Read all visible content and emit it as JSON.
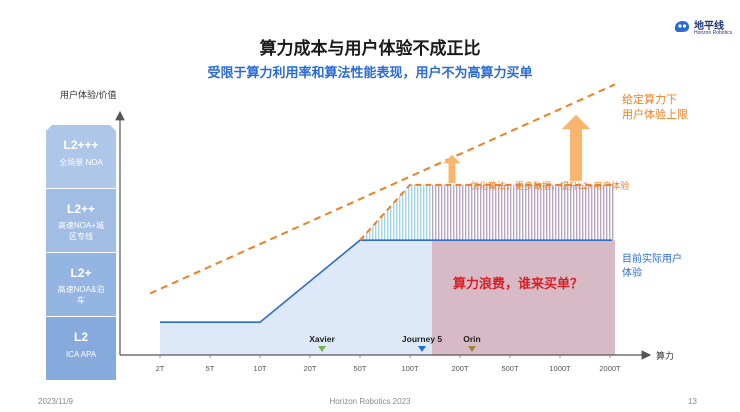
{
  "title": "算力成本与用户体验不成正比",
  "subtitle": "受限于算力利用率和算法性能表现，用户不为高算力买单",
  "logo": {
    "name_cn": "地平线",
    "name_en": "Horizon Robotics",
    "icon": "horizon-logo-icon",
    "color": "#233a7a"
  },
  "footer": {
    "date": "2023/11/9",
    "company": "Horizon Robotics 2023",
    "page": "13"
  },
  "chart_data": {
    "type": "line",
    "ylabel": "用户体验/价值",
    "xlabel": "算力",
    "categories": [
      "2T",
      "5T",
      "10T",
      "20T",
      "50T",
      "100T",
      "200T",
      "500T",
      "1000T",
      "2000T"
    ],
    "levels": [
      {
        "name": "L2+++",
        "desc": "全场景 NOA"
      },
      {
        "name": "L2++",
        "desc": "高速NOA+城区专线"
      },
      {
        "name": "L2+",
        "desc": "高速NOA&泊车"
      },
      {
        "name": "L2",
        "desc": "ICA APA"
      }
    ],
    "series": [
      {
        "name": "目前实际用户体验",
        "color": "#2b6bd6",
        "points": [
          [
            "2T",
            0.16
          ],
          [
            "10T",
            0.16
          ],
          [
            "50T",
            0.56
          ],
          [
            "2000T",
            0.56
          ]
        ]
      },
      {
        "name": "给定算力下用户体验上限",
        "color": "#f07f23",
        "points": [
          [
            "2T",
            0.3
          ],
          [
            "2000T",
            1.32
          ]
        ]
      },
      {
        "name": "",
        "color": "#f07f23",
        "points": [
          [
            "50T",
            0.56
          ],
          [
            "100T",
            0.83
          ],
          [
            "2000T",
            0.83
          ]
        ]
      }
    ],
    "chips": [
      {
        "name": "Xavier",
        "at": "20T"
      },
      {
        "name": "Journey 5",
        "at": "100T"
      },
      {
        "name": "Orin",
        "at": "200T"
      }
    ],
    "annotations": {
      "waste": "算力浪费，谁来买单？",
      "improve": "优化算法，更多数据，提升L2+用户体验"
    },
    "colors": {
      "blue": "#2b6bd6",
      "orange": "#f07f23",
      "waste": "#c9a3b3",
      "shade": "#dde8f8",
      "level": "#7da3da"
    }
  }
}
